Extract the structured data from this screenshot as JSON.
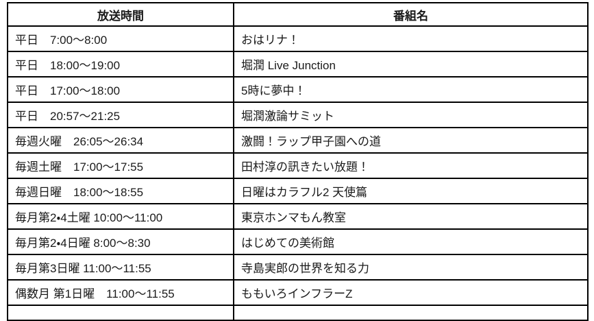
{
  "table": {
    "headers": [
      {
        "label": "放送時間"
      },
      {
        "label": "番組名"
      }
    ],
    "rows": [
      {
        "time": "平日　7:00～8:00",
        "program": "おはリナ！"
      },
      {
        "time": "平日　18:00～19:00",
        "program": "堀潤 Live Junction"
      },
      {
        "time": "平日　17:00～18:00",
        "program": "5時に夢中！"
      },
      {
        "time": "平日　20:57～21:25",
        "program": "堀潤激論サミット"
      },
      {
        "time": "毎週火曜　26:05～26:34",
        "program": "激闘！ラップ甲子園への道"
      },
      {
        "time": "毎週土曜　17:00～17:55",
        "program": "田村淳の訊きたい放題！"
      },
      {
        "time": "毎週日曜　18:00～18:55",
        "program": "日曜はカラフル2 天使篇"
      },
      {
        "time": "毎月第2・4土曜 10:00～11:00",
        "program": "東京ホンマもん教室"
      },
      {
        "time": "毎月第2・4日曜 8:00～8:30",
        "program": "はじめての美術館"
      },
      {
        "time": "毎月第3日曜 11:00～11:55",
        "program": "寺島実郎の世界を知る力"
      },
      {
        "time": "偶数月 第1日曜　11:00～11:55",
        "program": "ももいろインフラーZ"
      }
    ],
    "colors": {
      "border": "#000000",
      "text": "#1a1a1a",
      "background": "#ffffff"
    }
  }
}
